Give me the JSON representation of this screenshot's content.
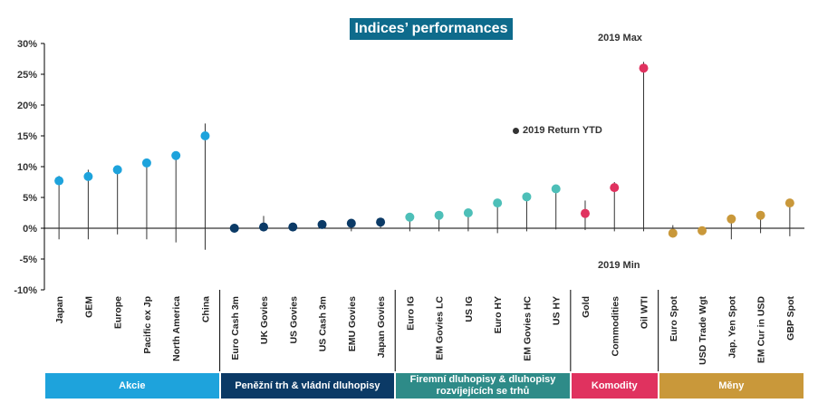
{
  "chart_data": {
    "type": "scatter",
    "title": "Indices’ performances",
    "ylim": [
      -10,
      30
    ],
    "yticks": [
      -10,
      -5,
      0,
      5,
      10,
      15,
      20,
      25,
      30
    ],
    "ytick_labels": [
      "-10%",
      "-5%",
      "0%",
      "5%",
      "10%",
      "15%",
      "20%",
      "25%",
      "30%"
    ],
    "annotations": {
      "max": "2019 Max",
      "min": "2019 Min",
      "legend": "2019 Return YTD"
    },
    "categories": [
      "Japan",
      "GEM",
      "Europe",
      "Pacific ex Jp",
      "North America",
      "China",
      "Euro Cash 3m",
      "UK Govies",
      "US Govies",
      "US Cash 3m",
      "EMU Govies",
      "Japan Govies",
      "Euro IG",
      "EM Govies LC",
      "US IG",
      "Euro HY",
      "EM Govies HC",
      "US HY",
      "Gold",
      "Commodities",
      "Oil WTI",
      "Euro Spot",
      "USD Trade Wgt",
      "Jap. Yen Spot",
      "EM Cur in USD",
      "GBP Spot"
    ],
    "ytd": [
      7.7,
      8.4,
      9.5,
      10.6,
      11.8,
      15.0,
      0.0,
      0.2,
      0.2,
      0.6,
      0.8,
      1.0,
      1.8,
      2.1,
      2.5,
      4.1,
      5.1,
      6.4,
      2.4,
      6.6,
      26.0,
      -0.8,
      -0.4,
      1.5,
      2.1,
      4.1
    ],
    "max": [
      8.5,
      9.5,
      10.0,
      11.0,
      12.0,
      17.0,
      0.0,
      2.0,
      0.5,
      0.6,
      1.0,
      1.2,
      2.0,
      2.3,
      2.7,
      4.3,
      5.3,
      6.5,
      4.5,
      7.5,
      27.0,
      0.5,
      0.2,
      1.8,
      2.3,
      4.3
    ],
    "min": [
      -1.8,
      -1.8,
      -1.0,
      -1.8,
      -2.3,
      -3.5,
      0.0,
      -0.2,
      0.0,
      0.0,
      -0.5,
      0.0,
      -0.5,
      -0.5,
      -0.5,
      -0.8,
      -0.5,
      -0.2,
      -0.3,
      -0.5,
      -0.5,
      -1.5,
      -1.0,
      -1.8,
      -0.8,
      -1.3
    ],
    "groups": [
      {
        "name": "Akcie",
        "count": 6,
        "color": "#1ea3dc"
      },
      {
        "name": "Peněžní trh & vládní dluhopisy",
        "count": 6,
        "color": "#0b3a66"
      },
      {
        "name": "Firemní dluhopisy & dluhopisy rozvíjejících se trhů",
        "count": 6,
        "color": "#2e8b88"
      },
      {
        "name": "Komodity",
        "count": 3,
        "color": "#e0325f"
      },
      {
        "name": "Měny",
        "count": 5,
        "color": "#c9983a"
      }
    ],
    "point_colors": [
      "#1ea3dc",
      "#1ea3dc",
      "#1ea3dc",
      "#1ea3dc",
      "#1ea3dc",
      "#1ea3dc",
      "#0b3a66",
      "#0b3a66",
      "#0b3a66",
      "#0b3a66",
      "#0b3a66",
      "#0b3a66",
      "#4dbfb8",
      "#4dbfb8",
      "#4dbfb8",
      "#4dbfb8",
      "#4dbfb8",
      "#4dbfb8",
      "#e0325f",
      "#e0325f",
      "#e0325f",
      "#c9983a",
      "#c9983a",
      "#c9983a",
      "#c9983a",
      "#c9983a"
    ]
  }
}
